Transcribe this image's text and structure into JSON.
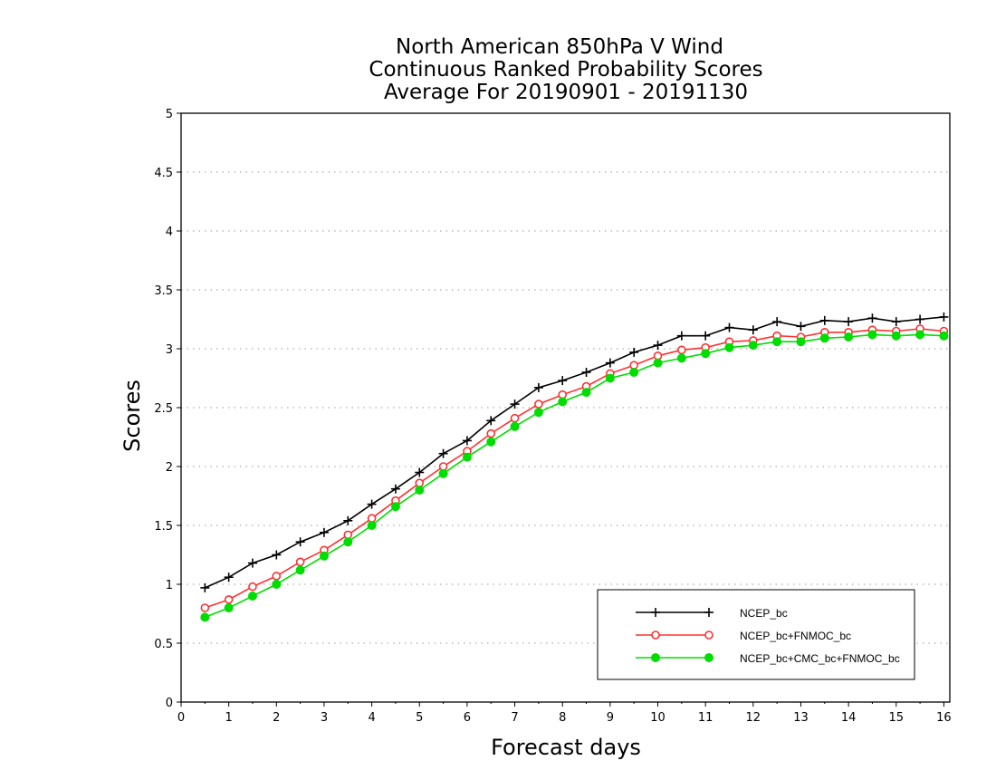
{
  "chart_data": {
    "type": "line",
    "title_lines": [
      "North American 850hPa V Wind",
      "Continuous Ranked Probability Scores",
      "Average For 20190901 - 20191130"
    ],
    "xlabel": "Forecast days",
    "ylabel": "Scores",
    "xlim": [
      0,
      16.125
    ],
    "ylim": [
      0,
      5
    ],
    "xticks": [
      "0",
      "1",
      "2",
      "3",
      "4",
      "5",
      "6",
      "7",
      "8",
      "9",
      "10",
      "11",
      "12",
      "13",
      "14",
      "15",
      "16"
    ],
    "yticks": [
      "0",
      "0.5",
      "1",
      "1.5",
      "2",
      "2.5",
      "3",
      "3.5",
      "4",
      "4.5",
      "5"
    ],
    "grid": true,
    "legend_position": "bottom-right",
    "x": [
      0.5,
      1,
      1.5,
      2,
      2.5,
      3,
      3.5,
      4,
      4.5,
      5,
      5.5,
      6,
      6.5,
      7,
      7.5,
      8,
      8.5,
      9,
      9.5,
      10,
      10.5,
      11,
      11.5,
      12,
      12.5,
      13,
      13.5,
      14,
      14.5,
      15,
      15.5,
      16
    ],
    "series": [
      {
        "name": "NCEP_bc",
        "color": "#000000",
        "marker": "plus",
        "values": [
          0.97,
          1.06,
          1.18,
          1.25,
          1.36,
          1.44,
          1.54,
          1.68,
          1.81,
          1.95,
          2.11,
          2.22,
          2.39,
          2.53,
          2.67,
          2.73,
          2.8,
          2.88,
          2.97,
          3.03,
          3.11,
          3.11,
          3.18,
          3.16,
          3.23,
          3.19,
          3.24,
          3.23,
          3.26,
          3.23,
          3.25,
          3.27
        ]
      },
      {
        "name": "NCEP_bc+FNMOC_bc",
        "color": "#ff3030",
        "marker": "open-circle",
        "values": [
          0.8,
          0.87,
          0.98,
          1.07,
          1.19,
          1.29,
          1.42,
          1.56,
          1.71,
          1.86,
          2.0,
          2.13,
          2.28,
          2.41,
          2.53,
          2.61,
          2.68,
          2.79,
          2.86,
          2.94,
          2.99,
          3.01,
          3.06,
          3.07,
          3.11,
          3.1,
          3.14,
          3.14,
          3.16,
          3.15,
          3.17,
          3.15
        ]
      },
      {
        "name": "NCEP_bc+CMC_bc+FNMOC_bc",
        "color": "#00dd00",
        "marker": "filled-circle",
        "values": [
          0.72,
          0.8,
          0.9,
          1.0,
          1.12,
          1.24,
          1.36,
          1.5,
          1.66,
          1.8,
          1.94,
          2.08,
          2.21,
          2.34,
          2.46,
          2.55,
          2.63,
          2.75,
          2.8,
          2.88,
          2.92,
          2.96,
          3.01,
          3.03,
          3.06,
          3.06,
          3.09,
          3.1,
          3.12,
          3.11,
          3.12,
          3.11
        ]
      }
    ]
  }
}
